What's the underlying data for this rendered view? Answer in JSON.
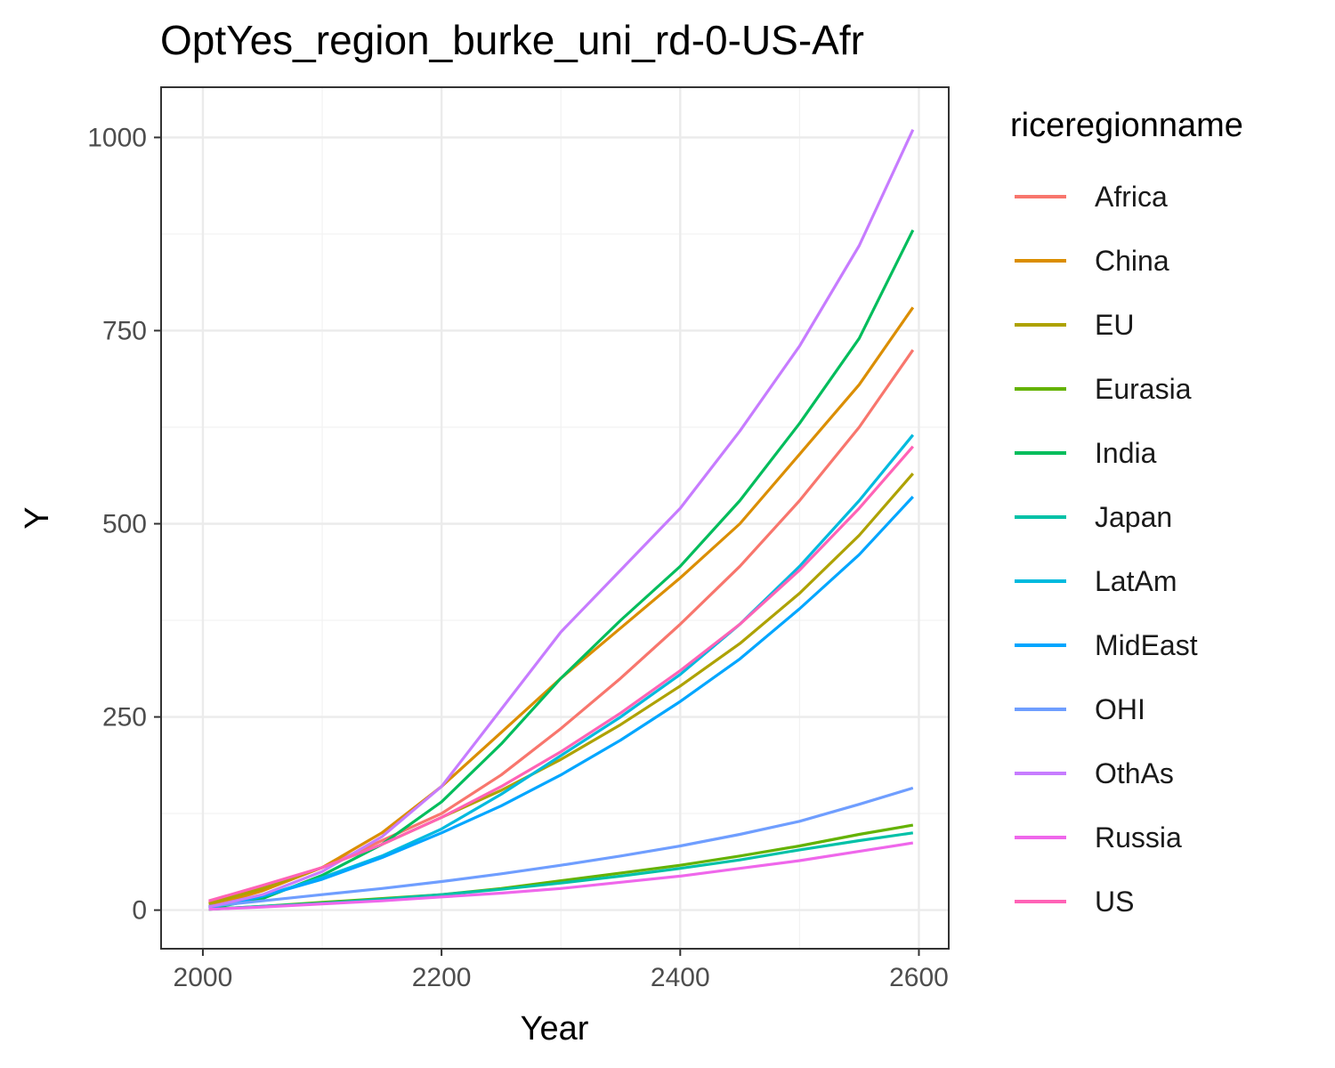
{
  "chart_data": {
    "type": "line",
    "title": "OptYes_region_burke_uni_rd-0-US-Afr",
    "xlabel": "Year",
    "ylabel": "Y",
    "xlim": [
      1965,
      2625
    ],
    "ylim": [
      -50,
      1065
    ],
    "x_ticks": [
      2000,
      2200,
      2400,
      2600
    ],
    "y_ticks": [
      0,
      250,
      500,
      750,
      1000
    ],
    "grid": true,
    "legend_title": "riceregionname",
    "legend_position": "right",
    "x": [
      2005,
      2050,
      2100,
      2150,
      2200,
      2250,
      2300,
      2350,
      2400,
      2450,
      2500,
      2550,
      2595
    ],
    "series": [
      {
        "name": "Africa",
        "color": "#F8766D",
        "values": [
          10,
          30,
          55,
          90,
          125,
          175,
          235,
          300,
          370,
          445,
          530,
          625,
          725
        ]
      },
      {
        "name": "China",
        "color": "#DB8E00",
        "values": [
          5,
          25,
          55,
          100,
          160,
          230,
          300,
          365,
          430,
          500,
          590,
          680,
          780
        ]
      },
      {
        "name": "EU",
        "color": "#AEA200",
        "values": [
          8,
          28,
          55,
          85,
          120,
          155,
          195,
          240,
          290,
          345,
          410,
          485,
          565
        ]
      },
      {
        "name": "Eurasia",
        "color": "#64B200",
        "values": [
          1,
          5,
          10,
          15,
          20,
          28,
          38,
          48,
          58,
          70,
          83,
          98,
          110
        ]
      },
      {
        "name": "India",
        "color": "#00BD5C",
        "values": [
          2,
          15,
          45,
          85,
          140,
          215,
          300,
          375,
          445,
          530,
          630,
          740,
          880
        ]
      },
      {
        "name": "Japan",
        "color": "#00C1A7",
        "values": [
          1,
          5,
          9,
          14,
          20,
          27,
          35,
          44,
          54,
          65,
          78,
          90,
          100
        ]
      },
      {
        "name": "LatAm",
        "color": "#00BADE",
        "values": [
          3,
          18,
          42,
          70,
          105,
          150,
          200,
          250,
          305,
          370,
          445,
          530,
          615
        ]
      },
      {
        "name": "MidEast",
        "color": "#00A6FF",
        "values": [
          3,
          18,
          40,
          68,
          100,
          135,
          175,
          220,
          270,
          325,
          390,
          460,
          535
        ]
      },
      {
        "name": "OHI",
        "color": "#6F9EFF",
        "values": [
          5,
          12,
          20,
          28,
          37,
          47,
          58,
          70,
          83,
          98,
          115,
          137,
          158
        ]
      },
      {
        "name": "OthAs",
        "color": "#C77CFF",
        "values": [
          4,
          20,
          50,
          95,
          160,
          260,
          360,
          440,
          520,
          620,
          730,
          860,
          1010
        ]
      },
      {
        "name": "Russia",
        "color": "#EF67EB",
        "values": [
          1,
          4,
          8,
          12,
          17,
          22,
          28,
          36,
          44,
          54,
          64,
          76,
          87
        ]
      },
      {
        "name": "US",
        "color": "#FF63B6",
        "values": [
          12,
          32,
          55,
          85,
          120,
          160,
          205,
          255,
          310,
          370,
          440,
          520,
          600
        ]
      }
    ]
  }
}
